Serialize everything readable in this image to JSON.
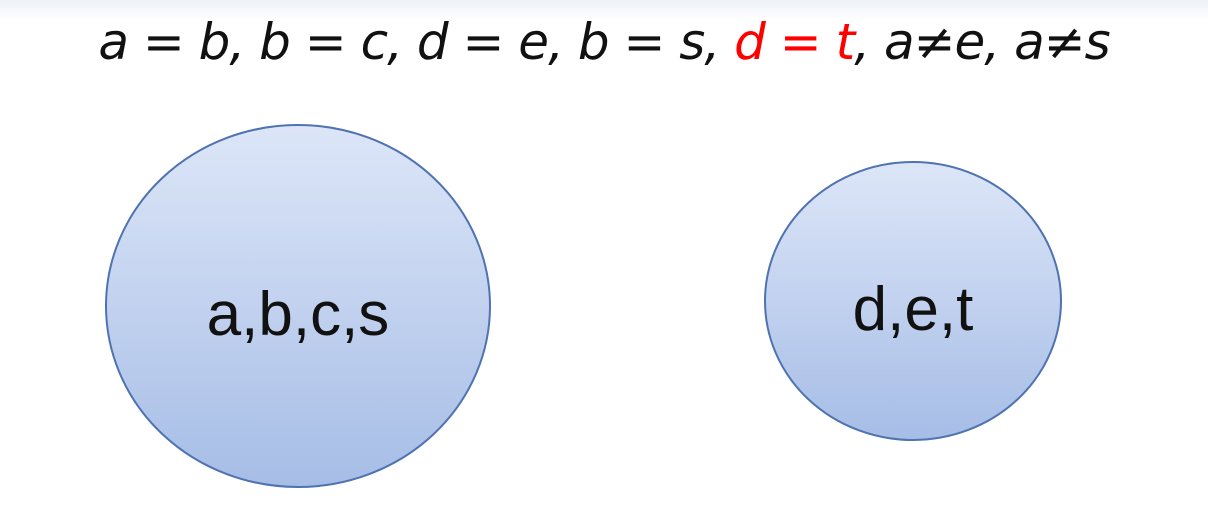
{
  "equation": {
    "terms": [
      {
        "text": "a = b",
        "highlight": false
      },
      {
        "text": "b = c",
        "highlight": false
      },
      {
        "text": "d = e",
        "highlight": false
      },
      {
        "text": "b = s",
        "highlight": false
      },
      {
        "text": "d = t",
        "highlight": true
      },
      {
        "text": "a≠e",
        "highlight": false
      },
      {
        "text": "a≠s",
        "highlight": false
      }
    ],
    "separator": ", ",
    "highlight_color": "#ff0000"
  },
  "sets": [
    {
      "label": "a,b,c,s"
    },
    {
      "label": "d,e,t"
    }
  ],
  "colors": {
    "circle_fill_top": "#dde6f8",
    "circle_fill_bottom": "#a6bde6",
    "circle_stroke": "#4f73b0"
  }
}
